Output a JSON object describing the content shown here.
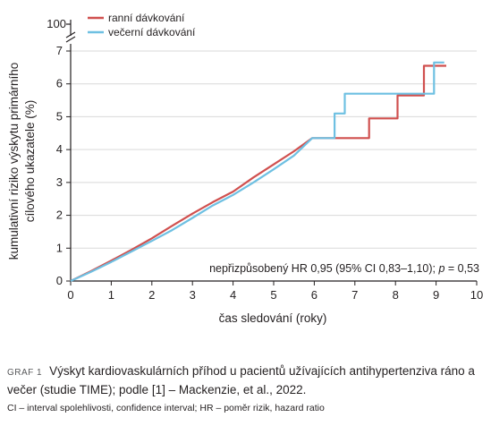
{
  "chart_data": {
    "type": "line",
    "ylabel_line1": "kumulativní riziko výskytu primárního",
    "ylabel_line2": "cílového ukazatele (%)",
    "xlabel": "čas sledování (roky)",
    "xlim": [
      0,
      10
    ],
    "ylim": [
      0,
      7
    ],
    "x_ticks": [
      "0",
      "1",
      "2",
      "3",
      "4",
      "5",
      "6",
      "7",
      "8",
      "9",
      "10"
    ],
    "y_ticks": [
      "0",
      "1",
      "2",
      "3",
      "4",
      "5",
      "6",
      "7"
    ],
    "y_break_label": "100",
    "annotation": "nepřizpůsobený HR 0,95 (95% CI 0,83–1,10); p = 0,53",
    "series": [
      {
        "name": "ranní dávkování",
        "color": "#d0504f",
        "points": [
          [
            0,
            0
          ],
          [
            0.5,
            0.3
          ],
          [
            1,
            0.62
          ],
          [
            1.5,
            0.95
          ],
          [
            2,
            1.3
          ],
          [
            2.5,
            1.68
          ],
          [
            3,
            2.05
          ],
          [
            3.5,
            2.4
          ],
          [
            4,
            2.72
          ],
          [
            4.5,
            3.15
          ],
          [
            5,
            3.55
          ],
          [
            5.5,
            3.95
          ],
          [
            5.95,
            4.35
          ],
          [
            7.35,
            4.35
          ],
          [
            7.35,
            4.95
          ],
          [
            7.9,
            4.95
          ],
          [
            8.05,
            4.95
          ],
          [
            8.05,
            5.65
          ],
          [
            8.7,
            5.65
          ],
          [
            8.7,
            6.55
          ],
          [
            9.25,
            6.55
          ]
        ]
      },
      {
        "name": "večerní dávkování",
        "color": "#6ec0e2",
        "points": [
          [
            0,
            0
          ],
          [
            0.5,
            0.28
          ],
          [
            1,
            0.58
          ],
          [
            1.5,
            0.9
          ],
          [
            2,
            1.22
          ],
          [
            2.5,
            1.55
          ],
          [
            3,
            1.92
          ],
          [
            3.5,
            2.3
          ],
          [
            4,
            2.62
          ],
          [
            4.5,
            3.0
          ],
          [
            5,
            3.4
          ],
          [
            5.5,
            3.82
          ],
          [
            5.95,
            4.35
          ],
          [
            6.5,
            4.35
          ],
          [
            6.5,
            5.1
          ],
          [
            6.75,
            5.1
          ],
          [
            6.75,
            5.7
          ],
          [
            8.1,
            5.7
          ],
          [
            8.95,
            5.7
          ],
          [
            8.95,
            6.65
          ],
          [
            9.2,
            6.65
          ]
        ]
      }
    ]
  },
  "caption": {
    "label": "GRAF 1",
    "text": "Výskyt kardiovaskulárních příhod u pacientů užívajících antihyperten­ziva ráno a večer (studie TIME); podle [1] – Mackenzie, et al., 2022.",
    "note": "CI – interval spolehlivosti, confidence interval; HR – poměr rizik, hazard ratio"
  }
}
